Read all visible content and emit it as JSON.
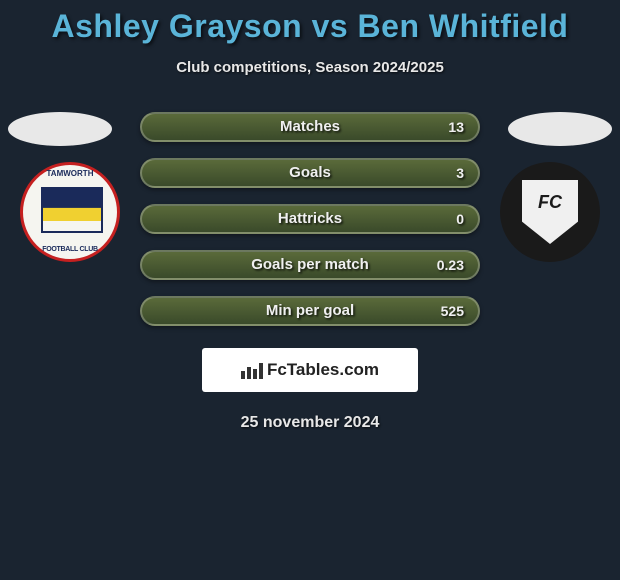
{
  "title": "Ashley Grayson vs Ben Whitfield",
  "subtitle": "Club competitions, Season 2024/2025",
  "date": "25 november 2024",
  "logo_text": "FcTables.com",
  "left_club_top": "TAMWORTH",
  "colors": {
    "background": "#1a2430",
    "title": "#5ab4d8",
    "bar_bg_top": "#5a6a3a",
    "bar_bg_bottom": "#3a4a2a",
    "text": "#e8e8e8"
  },
  "stats": [
    {
      "label": "Matches",
      "value": "13"
    },
    {
      "label": "Goals",
      "value": "3"
    },
    {
      "label": "Hattricks",
      "value": "0"
    },
    {
      "label": "Goals per match",
      "value": "0.23"
    },
    {
      "label": "Min per goal",
      "value": "525"
    }
  ]
}
